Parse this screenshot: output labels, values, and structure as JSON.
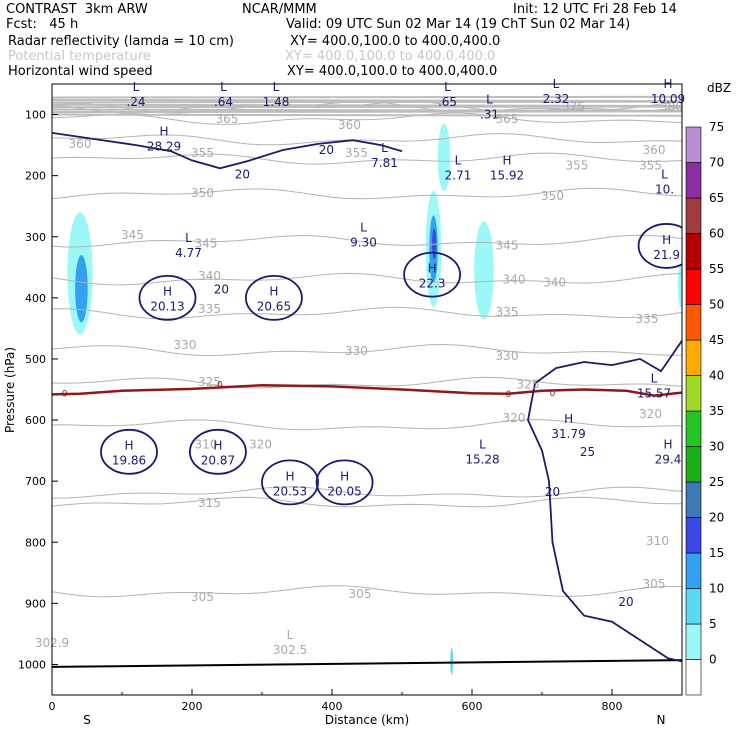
{
  "header": {
    "model": "CONTRAST  3km ARW",
    "center": "NCAR/MMM",
    "init": "Init: 12 UTC Fri 28 Feb 14",
    "fcst": "Fcst:   45 h",
    "valid": "Valid: 09 UTC Sun 02 Mar 14 (19 ChT Sun 02 Mar 14)",
    "fields": [
      {
        "name": "Radar reflectivity (lamda = 10 cm)",
        "xy": "XY= 400.0,100.0 to 400.0,400.0",
        "faint": false
      },
      {
        "name": "Potential temperature",
        "xy": "XY= 400.0,100.0 to 400.0,400.0",
        "faint": true
      },
      {
        "name": "Horizontal wind speed",
        "xy": "XY= 400.0,100.0 to 400.0,400.0",
        "faint": false
      }
    ]
  },
  "chart_data": {
    "type": "cross-section",
    "xlabel": "Distance (km)",
    "ylabel": "Pressure (hPa)",
    "x_ticks": [
      0,
      200,
      400,
      600,
      800
    ],
    "xlim": [
      0,
      900
    ],
    "y_ticks": [
      100,
      200,
      300,
      400,
      500,
      600,
      700,
      800,
      900,
      1000
    ],
    "ylim": [
      50,
      1050
    ],
    "endpoints": {
      "left": "S",
      "right": "N"
    },
    "colorbar": {
      "unit": "dBZ",
      "levels": [
        0,
        5,
        10,
        15,
        20,
        25,
        30,
        35,
        40,
        45,
        50,
        55,
        60,
        65,
        70,
        75
      ],
      "colors": [
        "#ffffff",
        "#9cf7f7",
        "#5ad8f5",
        "#33a0f0",
        "#3a48e6",
        "#3c79b6",
        "#19b019",
        "#25c525",
        "#a0d828",
        "#ffaa00",
        "#ff5a00",
        "#ff0000",
        "#b40000",
        "#a03c3c",
        "#8c2ea6",
        "#b98ed2"
      ]
    },
    "theta_labels": [
      {
        "v": "360",
        "x": 40,
        "p": 148
      },
      {
        "v": "365",
        "x": 250,
        "p": 107
      },
      {
        "v": "360",
        "x": 425,
        "p": 117
      },
      {
        "v": "365",
        "x": 650,
        "p": 107
      },
      {
        "v": "375",
        "x": 745,
        "p": 88
      },
      {
        "v": "380",
        "x": 885,
        "p": 88
      },
      {
        "v": "360",
        "x": 860,
        "p": 158
      },
      {
        "v": "355",
        "x": 215,
        "p": 163
      },
      {
        "v": "355",
        "x": 435,
        "p": 163
      },
      {
        "v": "355",
        "x": 750,
        "p": 183
      },
      {
        "v": "355",
        "x": 855,
        "p": 183
      },
      {
        "v": "350",
        "x": 215,
        "p": 228
      },
      {
        "v": "350",
        "x": 715,
        "p": 233
      },
      {
        "v": "345",
        "x": 115,
        "p": 297
      },
      {
        "v": "345",
        "x": 220,
        "p": 311
      },
      {
        "v": "345",
        "x": 650,
        "p": 314
      },
      {
        "v": "340",
        "x": 225,
        "p": 364
      },
      {
        "v": "340",
        "x": 660,
        "p": 370
      },
      {
        "v": "340",
        "x": 718,
        "p": 375
      },
      {
        "v": "335",
        "x": 225,
        "p": 418
      },
      {
        "v": "335",
        "x": 650,
        "p": 423
      },
      {
        "v": "335",
        "x": 850,
        "p": 435
      },
      {
        "v": "330",
        "x": 190,
        "p": 477
      },
      {
        "v": "330",
        "x": 435,
        "p": 487
      },
      {
        "v": "330",
        "x": 650,
        "p": 495
      },
      {
        "v": "325",
        "x": 225,
        "p": 538
      },
      {
        "v": "325",
        "x": 680,
        "p": 542
      },
      {
        "v": "320",
        "x": 660,
        "p": 597
      },
      {
        "v": "320",
        "x": 298,
        "p": 640
      },
      {
        "v": "320",
        "x": 855,
        "p": 590
      },
      {
        "v": "310",
        "x": 220,
        "p": 640
      },
      {
        "v": "315",
        "x": 225,
        "p": 736
      },
      {
        "v": "310",
        "x": 865,
        "p": 798
      },
      {
        "v": "305",
        "x": 860,
        "p": 868
      },
      {
        "v": "305",
        "x": 215,
        "p": 890
      },
      {
        "v": "305",
        "x": 440,
        "p": 885
      },
      {
        "v": "302.9",
        "x": 0,
        "p": 965
      }
    ],
    "wind_labels": [
      {
        "v": "20",
        "x": 272,
        "p": 198
      },
      {
        "v": "20",
        "x": 392,
        "p": 158
      },
      {
        "v": "20",
        "x": 242,
        "p": 386
      },
      {
        "v": "25",
        "x": 765,
        "p": 652
      },
      {
        "v": "20",
        "x": 715,
        "p": 718
      },
      {
        "v": "20",
        "x": 820,
        "p": 898
      },
      {
        "v": "0",
        "x": 18,
        "p": 555
      },
      {
        "v": "0",
        "x": 240,
        "p": 540
      },
      {
        "v": "0",
        "x": 652,
        "p": 556
      },
      {
        "v": "0",
        "x": 715,
        "p": 554
      }
    ],
    "extrema": [
      {
        "t": "L",
        "v": ".24",
        "x": 120,
        "p": 55
      },
      {
        "t": "L",
        "v": ".64",
        "x": 245,
        "p": 55
      },
      {
        "t": "L",
        "v": "1.48",
        "x": 320,
        "p": 55
      },
      {
        "t": "L",
        "v": ".65",
        "x": 565,
        "p": 55
      },
      {
        "t": "L",
        "v": ".31",
        "x": 625,
        "p": 75
      },
      {
        "t": "L",
        "v": "2.32",
        "x": 720,
        "p": 50
      },
      {
        "t": "H",
        "v": "10.09",
        "x": 880,
        "p": 50
      },
      {
        "t": "H",
        "v": "28.29",
        "x": 160,
        "p": 128
      },
      {
        "t": "L",
        "v": "7.81",
        "x": 475,
        "p": 155
      },
      {
        "t": "L",
        "v": "2.71",
        "x": 580,
        "p": 175
      },
      {
        "t": "H",
        "v": "15.92",
        "x": 650,
        "p": 175
      },
      {
        "t": "L",
        "v": "10.",
        "x": 875,
        "p": 198
      },
      {
        "t": "L",
        "v": "9.30",
        "x": 445,
        "p": 285
      },
      {
        "t": "L",
        "v": "4.77",
        "x": 195,
        "p": 302
      },
      {
        "t": "H",
        "v": "21.9",
        "x": 878,
        "p": 305
      },
      {
        "t": "H",
        "v": "22.3",
        "x": 543,
        "p": 352
      },
      {
        "t": "H",
        "v": "20.13",
        "x": 165,
        "p": 390
      },
      {
        "t": "H",
        "v": "20.65",
        "x": 317,
        "p": 390
      },
      {
        "t": "L",
        "v": "15.57",
        "x": 860,
        "p": 532
      },
      {
        "t": "H",
        "v": "31.79",
        "x": 738,
        "p": 598
      },
      {
        "t": "H",
        "v": "19.86",
        "x": 110,
        "p": 642
      },
      {
        "t": "H",
        "v": "20.87",
        "x": 237,
        "p": 642
      },
      {
        "t": "L",
        "v": "15.28",
        "x": 615,
        "p": 640
      },
      {
        "t": "H",
        "v": "29.4",
        "x": 880,
        "p": 640
      },
      {
        "t": "H",
        "v": "20.53",
        "x": 340,
        "p": 692
      },
      {
        "t": "H",
        "v": "20.05",
        "x": 418,
        "p": 692
      },
      {
        "t": "L",
        "v": "302.5",
        "x": 340,
        "p": 952
      }
    ],
    "reflectivity_cells": [
      {
        "x": 40,
        "p": 360,
        "rx": 18,
        "rp": 100,
        "dbz": 5
      },
      {
        "x": 42,
        "p": 385,
        "rx": 9,
        "rp": 55,
        "dbz": 15
      },
      {
        "x": 560,
        "p": 170,
        "rx": 9,
        "rp": 55,
        "dbz": 5
      },
      {
        "x": 545,
        "p": 320,
        "rx": 11,
        "rp": 95,
        "dbz": 5
      },
      {
        "x": 545,
        "p": 320,
        "rx": 6,
        "rp": 55,
        "dbz": 15
      },
      {
        "x": 546,
        "p": 312,
        "rx": 3,
        "rp": 25,
        "dbz": 20
      },
      {
        "x": 617,
        "p": 355,
        "rx": 14,
        "rp": 80,
        "dbz": 5
      },
      {
        "x": 898,
        "p": 380,
        "rx": 4,
        "rp": 35,
        "dbz": 5
      },
      {
        "x": 571,
        "p": 995,
        "rx": 2,
        "rp": 22,
        "dbz": 10
      }
    ],
    "zero_wind_line": {
      "x": [
        0,
        40,
        100,
        200,
        300,
        400,
        500,
        600,
        650,
        700,
        760,
        820,
        860,
        900
      ],
      "p": [
        558,
        557,
        552,
        549,
        543,
        545,
        550,
        556,
        557,
        552,
        550,
        552,
        560,
        555
      ]
    },
    "surface_line": {
      "x": [
        0,
        900
      ],
      "p": [
        1004,
        993
      ]
    }
  }
}
